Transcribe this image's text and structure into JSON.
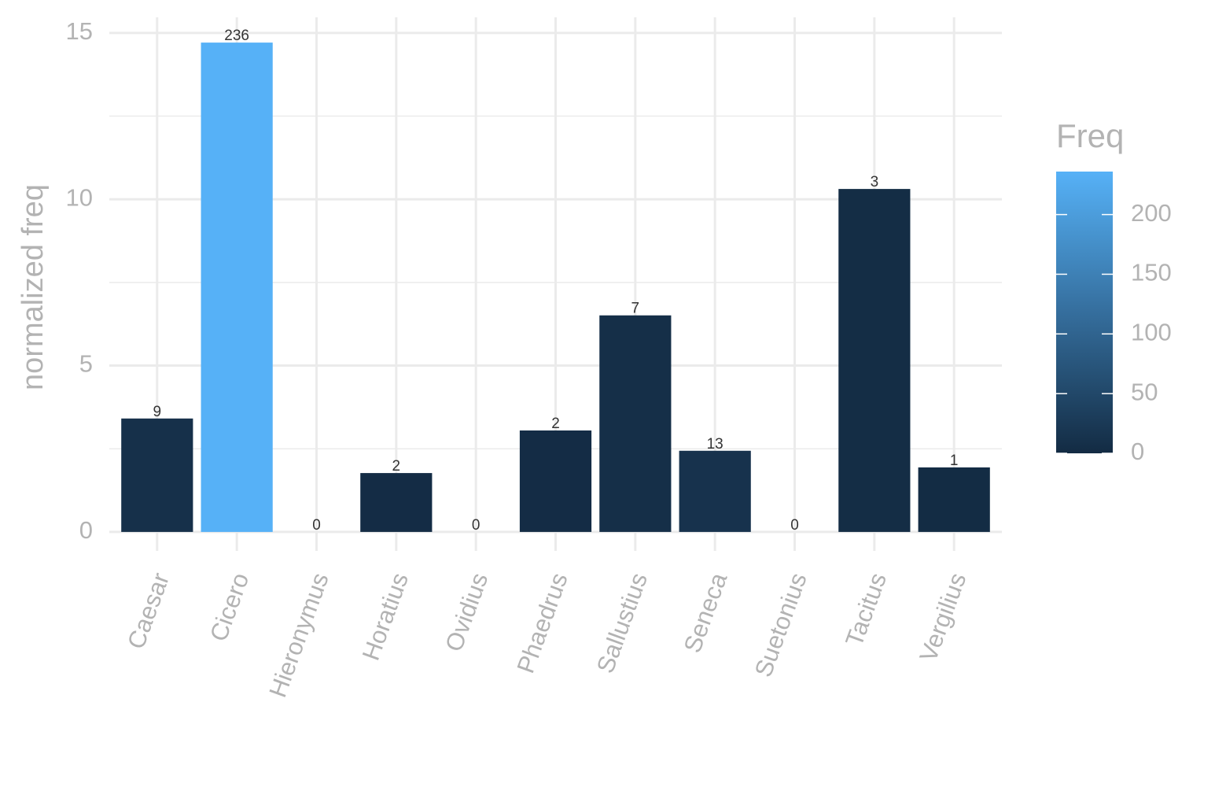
{
  "chart_data": {
    "type": "bar",
    "y_label": "normalized freq",
    "categories": [
      "Caesar",
      "Cicero",
      "Hieronymus",
      "Horatius",
      "Ovidius",
      "Phaedrus",
      "Sallustius",
      "Seneca",
      "Suetonius",
      "Tacitus",
      "Vergilius"
    ],
    "values": [
      3.41,
      14.71,
      0,
      1.77,
      0,
      3.05,
      6.51,
      2.44,
      0,
      10.31,
      1.94
    ],
    "freq": [
      9,
      236,
      0,
      2,
      0,
      2,
      7,
      13,
      0,
      3,
      1
    ],
    "ylim": [
      -0.57,
      15.47
    ],
    "yticks": [
      0,
      5,
      10,
      15
    ],
    "grid": true,
    "fill_legend": {
      "title": "Freq",
      "lim": [
        0,
        236
      ],
      "ticks": [
        0,
        50,
        100,
        150,
        200
      ],
      "low": "#132B43",
      "high": "#56B1F7"
    }
  }
}
